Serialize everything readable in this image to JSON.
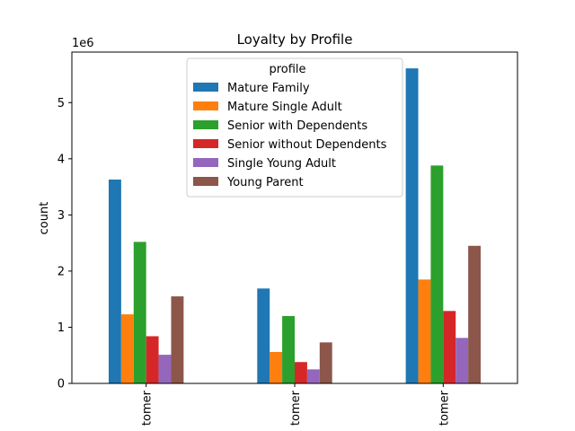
{
  "chart_data": {
    "type": "bar",
    "title": "Loyalty by Profile",
    "xlabel": "",
    "ylabel": "count",
    "y_scale_label": "1e6",
    "ylim": [
      0,
      5.9
    ],
    "yticks": [
      0,
      1,
      2,
      3,
      4,
      5
    ],
    "ytick_labels": [
      "0",
      "1",
      "2",
      "3",
      "4",
      "5"
    ],
    "categories": [
      "tomer",
      "tomer",
      "tomer"
    ],
    "legend": {
      "title": "profile",
      "placement": "top-center"
    },
    "series": [
      {
        "name": "Mature Family",
        "color": "#1f77b4",
        "values": [
          3.63,
          1.69,
          5.61
        ]
      },
      {
        "name": "Mature Single Adult",
        "color": "#ff7f0e",
        "values": [
          1.23,
          0.56,
          1.85
        ]
      },
      {
        "name": "Senior with Dependents",
        "color": "#2ca02c",
        "values": [
          2.52,
          1.2,
          3.88
        ]
      },
      {
        "name": "Senior without Dependents",
        "color": "#d62728",
        "values": [
          0.84,
          0.38,
          1.29
        ]
      },
      {
        "name": "Single Young Adult",
        "color": "#9467bd",
        "values": [
          0.51,
          0.25,
          0.81
        ]
      },
      {
        "name": "Young Parent",
        "color": "#8c564b",
        "values": [
          1.55,
          0.73,
          2.45
        ]
      }
    ]
  }
}
